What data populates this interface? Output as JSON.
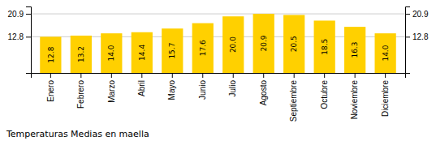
{
  "chart_data": {
    "type": "bar",
    "title": "Temperaturas Medias en maella",
    "categories": [
      "Enero",
      "Febrero",
      "Marzo",
      "Abril",
      "Mayo",
      "Junio",
      "Julio",
      "Agosto",
      "Septiembre",
      "Octubre",
      "Noviembre",
      "Diciembre"
    ],
    "values": [
      12.8,
      13.2,
      14.0,
      14.4,
      15.7,
      17.6,
      20.0,
      20.9,
      20.5,
      18.5,
      16.3,
      14.0
    ],
    "value_labels": [
      "12.8",
      "13.2",
      "14.0",
      "14.4",
      "15.7",
      "17.6",
      "20.0",
      "20.9",
      "20.5",
      "18.5",
      "16.3",
      "14.0"
    ],
    "data_labels": true,
    "color": "#FFD000",
    "ylim": [
      0,
      23.5
    ],
    "yticks": [
      12.8,
      20.9
    ],
    "y2lim": [
      0,
      23.5
    ],
    "y2ticks": [
      12.8,
      20.9
    ],
    "grid": true
  }
}
